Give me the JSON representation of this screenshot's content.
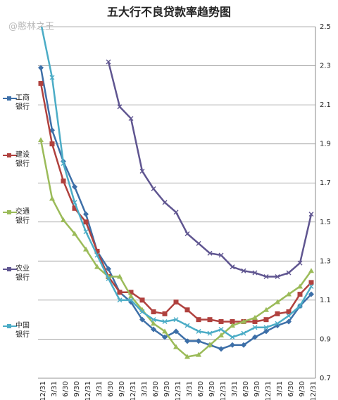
{
  "chart_data": {
    "type": "line",
    "title": "五大行不良贷款率趋势图",
    "watermark": "@憨林之王",
    "categories": [
      "12/31",
      "3/31",
      "6/30",
      "9/30",
      "12/31",
      "3/31",
      "6/30",
      "9/30",
      "12/31",
      "3/31",
      "6/30",
      "9/30",
      "12/31",
      "3/31",
      "6/30",
      "9/30",
      "12/31",
      "3/31",
      "6/30",
      "9/30",
      "12/31",
      "3/31",
      "6/30",
      "9/30",
      "12/31"
    ],
    "ylim": [
      0.7,
      2.5
    ],
    "yticks": [
      0.7,
      0.9,
      1.1,
      1.3,
      1.5,
      1.7,
      1.9,
      2.1,
      2.3,
      2.5
    ],
    "grid": true,
    "series": [
      {
        "name": "工商银行",
        "color": "#3d6fa8",
        "marker": "diamond",
        "values": [
          2.29,
          1.97,
          1.81,
          1.68,
          1.54,
          1.35,
          1.26,
          1.14,
          1.09,
          1.0,
          0.95,
          0.91,
          0.94,
          0.89,
          0.89,
          0.87,
          0.85,
          0.87,
          0.87,
          0.91,
          0.94,
          0.97,
          0.99,
          1.07,
          1.13
        ]
      },
      {
        "name": "建设银行",
        "color": "#b0413e",
        "marker": "square",
        "values": [
          2.21,
          1.9,
          1.71,
          1.57,
          1.5,
          1.35,
          1.22,
          1.14,
          1.14,
          1.1,
          1.04,
          1.03,
          1.09,
          1.05,
          1.0,
          1.0,
          0.99,
          0.99,
          0.99,
          0.99,
          1.0,
          1.03,
          1.04,
          1.13,
          1.19
        ]
      },
      {
        "name": "交通银行",
        "color": "#9bbb59",
        "marker": "triangle",
        "values": [
          1.92,
          1.62,
          1.51,
          1.44,
          1.36,
          1.27,
          1.22,
          1.22,
          1.12,
          1.05,
          0.98,
          0.94,
          0.86,
          0.81,
          0.82,
          0.87,
          0.92,
          0.97,
          0.99,
          1.01,
          1.05,
          1.09,
          1.13,
          1.17,
          1.25
        ]
      },
      {
        "name": "农业银行",
        "color": "#5f5590",
        "marker": "x",
        "values": [
          null,
          null,
          null,
          null,
          null,
          null,
          2.32,
          2.09,
          2.03,
          1.76,
          1.67,
          1.6,
          1.55,
          1.44,
          1.39,
          1.34,
          1.33,
          1.27,
          1.25,
          1.24,
          1.22,
          1.22,
          1.24,
          1.29,
          1.54
        ]
      },
      {
        "name": "中国银行",
        "color": "#4bacc6",
        "marker": "x",
        "values": [
          2.52,
          2.24,
          1.8,
          1.6,
          1.45,
          1.33,
          1.21,
          1.1,
          1.1,
          1.04,
          1.0,
          0.99,
          1.0,
          0.97,
          0.94,
          0.93,
          0.95,
          0.91,
          0.93,
          0.96,
          0.96,
          0.98,
          1.02,
          1.07,
          1.17
        ]
      }
    ]
  }
}
